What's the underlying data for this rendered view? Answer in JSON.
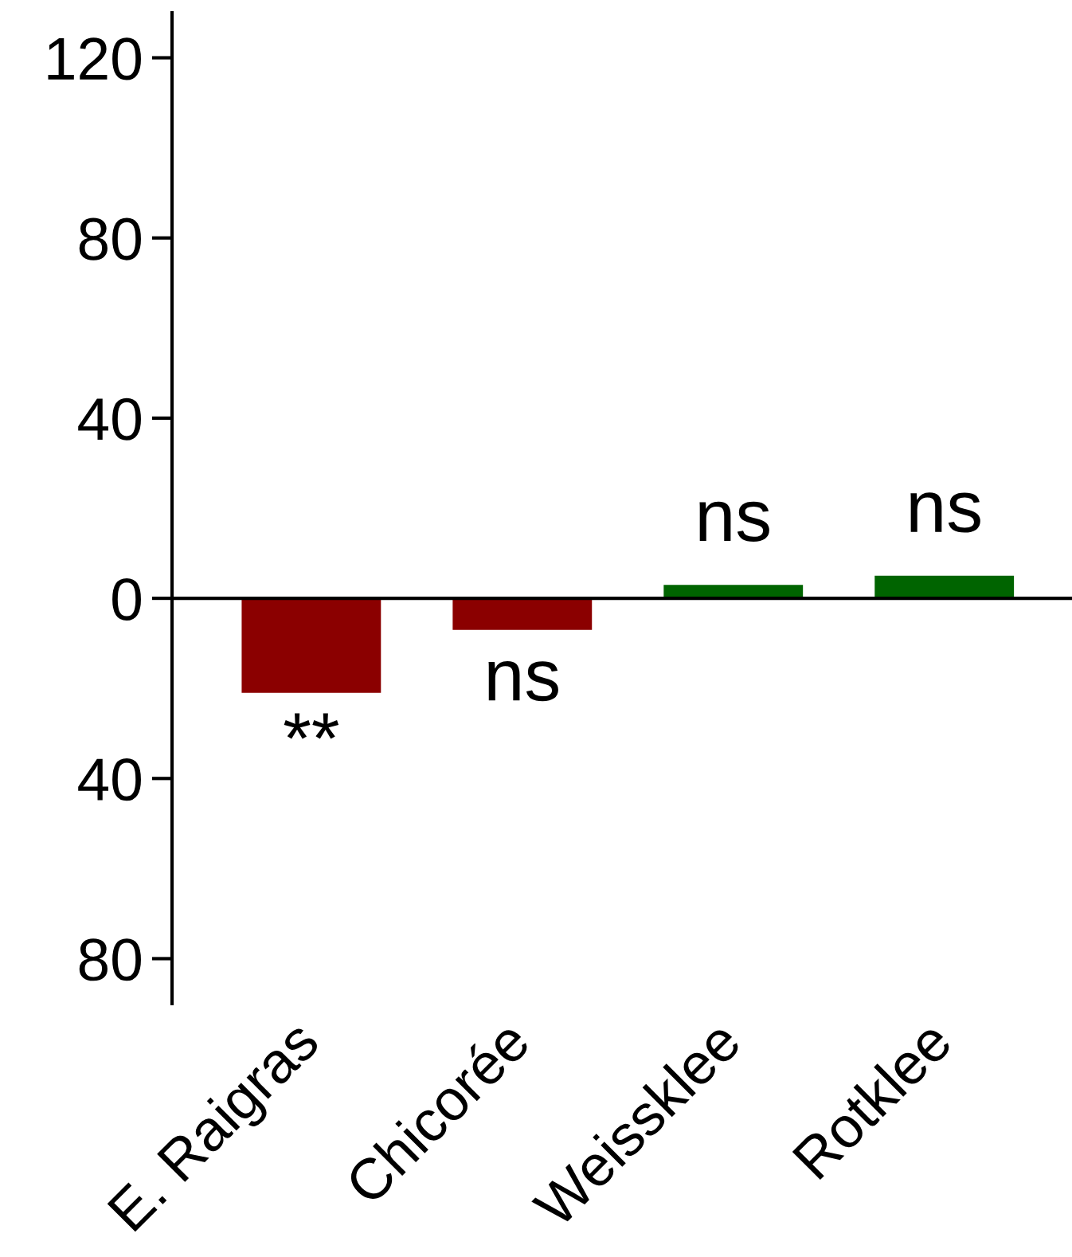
{
  "chart_data": {
    "type": "bar",
    "categories": [
      "E. Raigras",
      "Chicorée",
      "Weissklee",
      "Rotklee"
    ],
    "values": [
      -21,
      -7,
      3,
      5
    ],
    "colors": [
      "#8b0000",
      "#8b0000",
      "#006400",
      "#006400"
    ],
    "ylim": [
      -90,
      130
    ],
    "yticks": [
      {
        "value": -80,
        "label": "80"
      },
      {
        "value": -40,
        "label": "40"
      },
      0,
      40,
      80,
      120
    ],
    "annotations": [
      {
        "text": "**",
        "x": "E. Raigras",
        "y": -21
      },
      {
        "text": "ns",
        "x": "Chicorée",
        "y": -7
      },
      {
        "text": "ns",
        "x": "Weissklee",
        "y": 3
      },
      {
        "text": "ns",
        "x": "Rotklee",
        "y": 5
      }
    ],
    "legend": false
  }
}
